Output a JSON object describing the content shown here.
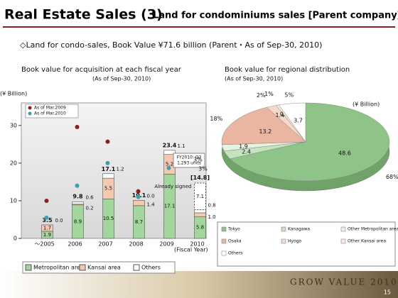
{
  "header": {
    "title": "Real Estate Sales (3)",
    "title_sub": "Land for condominiums sales [Parent company]",
    "subtitle": "◇Land for condo-sales, Book Value ¥71.6 billion (Parent・As of Sep-30, 2010)"
  },
  "chart_data": [
    {
      "type": "stacked-bar",
      "title": "Book value for acquisition at each fiscal year",
      "subtitle": "(As of Sep-30, 2010)",
      "y_label": "(¥ Billion)",
      "x_label": "(Fiscal Year)",
      "categories": [
        "～2005",
        "2006",
        "2007",
        "2008",
        "2009",
        "2010"
      ],
      "series": [
        {
          "name": "Metropolitan area",
          "color": "#a3d69c",
          "values": [
            1.9,
            8.9,
            10.5,
            8.7,
            17.1,
            5.8
          ]
        },
        {
          "name": "Kansai area",
          "color": "#f4c9ae",
          "values": [
            1.7,
            0.2,
            5.5,
            1.4,
            5.2,
            1.0
          ],
          "value_labels": [
            "1.7",
            "0.2",
            "5.5",
            "1.4",
            "5.2",
            "1.0"
          ]
        },
        {
          "name": "Others",
          "color": "#ffffff",
          "values": [
            0.0,
            0.6,
            1.2,
            0.0,
            1.1,
            0.8
          ],
          "value_labels": [
            "0.0",
            "0.6",
            "1.2",
            "0.0",
            "1.1",
            "0.8"
          ]
        }
      ],
      "totals": {
        "values": [
          3.5,
          9.8,
          17.1,
          10.1,
          23.4,
          14.8
        ],
        "value_labels": [
          "3.5",
          "9.8",
          "17.1",
          "10.1",
          "23.4",
          "[14.8]"
        ]
      },
      "signed": {
        "name": "Already signed",
        "values": [
          null,
          null,
          null,
          null,
          null,
          7.1
        ]
      },
      "note": [
        "FY2010: Q2",
        "1,293 units"
      ],
      "markers": [
        {
          "name": "As of Mar.2009",
          "color": "#8b1e1e",
          "values": [
            10,
            29.6,
            25.7,
            12.5,
            null,
            null
          ]
        },
        {
          "name": "As of Mar.2010",
          "color": "#3a9fb0",
          "values": [
            5.5,
            14,
            20,
            11,
            18.7,
            null
          ]
        }
      ],
      "ylim": [
        0,
        36
      ],
      "yticks": [
        0,
        10,
        20,
        30
      ]
    },
    {
      "type": "pie",
      "title": "Book value for regional distribution",
      "subtitle": "(As of Sep-30, 2010)",
      "unit": "(¥ Billion)",
      "categories": [
        "Tokyo",
        "Kanagawa",
        "Other Metropolitan area",
        "Osaka",
        "Hyogo",
        "Other Kansai area",
        "Others"
      ],
      "values": [
        48.6,
        2.4,
        1.9,
        13.2,
        1.4,
        0.4,
        3.7
      ],
      "percents": [
        68,
        3,
        3,
        18,
        2,
        1,
        5
      ],
      "percent_labels": [
        "68%",
        "3%",
        "3%",
        "18%",
        "2%",
        "1%",
        "5%"
      ],
      "colors": [
        "#8fc488",
        "#c4e4bd",
        "#e6f3e2",
        "#eab6a2",
        "#f7d9c9",
        "#fbe9df",
        "#ffffff"
      ]
    }
  ],
  "footer": {
    "brand": "GROW VALUE 2010",
    "page": "15"
  }
}
